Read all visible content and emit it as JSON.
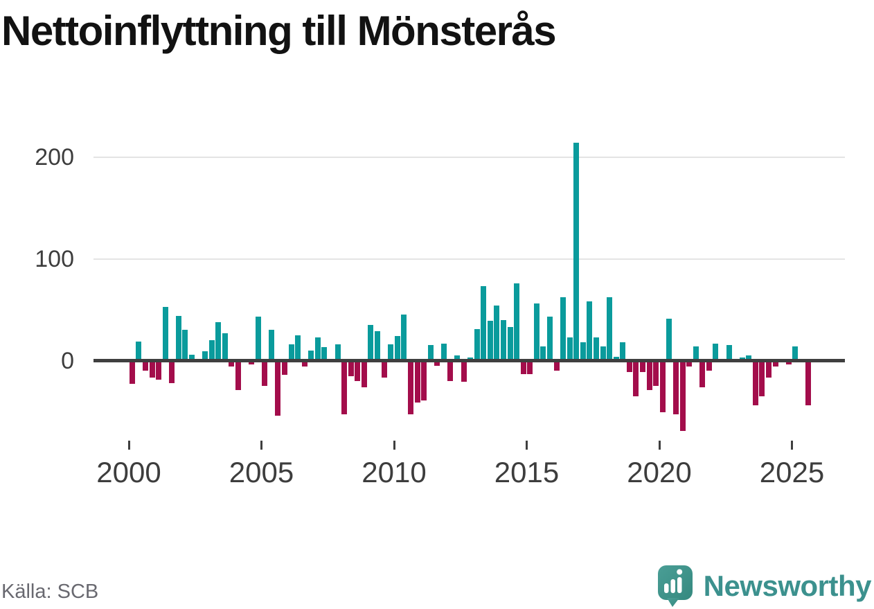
{
  "title": "Nettoinflyttning till Mönsterås",
  "source": "Källa: SCB",
  "brand": "Newsworthy",
  "colors": {
    "positive": "#0a9b9c",
    "negative": "#a30d4b",
    "axis_line": "#3f3f3f",
    "gridline": "#e4e4e4",
    "tick_text": "#3d3d3d",
    "title_text": "#121212",
    "source_text": "#696970",
    "brand_teal": "#3c918e"
  },
  "chart_data": {
    "type": "bar",
    "title": "Nettoinflyttning till Mönsterås",
    "xlabel": "",
    "ylabel": "",
    "frequency": "quarterly",
    "start_year": 2000,
    "start_quarter": 1,
    "xticks": [
      2000,
      2005,
      2010,
      2015,
      2020,
      2025
    ],
    "yticks": [
      0,
      100,
      200
    ],
    "ylim": [
      -80,
      240
    ],
    "grid": "horizontal",
    "legend": "none",
    "values": [
      -23,
      19,
      -10,
      -17,
      -19,
      53,
      -22,
      44,
      30,
      6,
      0,
      9,
      20,
      38,
      27,
      -6,
      -29,
      0,
      -4,
      43,
      -25,
      30,
      -54,
      -14,
      16,
      25,
      -6,
      10,
      23,
      13,
      0,
      16,
      -53,
      -15,
      -20,
      -26,
      35,
      29,
      -17,
      16,
      24,
      45,
      -53,
      -41,
      -39,
      15,
      -5,
      17,
      -20,
      5,
      -21,
      3,
      31,
      73,
      39,
      54,
      40,
      33,
      76,
      -13,
      -13,
      56,
      14,
      43,
      -10,
      62,
      23,
      214,
      18,
      58,
      23,
      14,
      62,
      4,
      18,
      -11,
      -35,
      -11,
      -29,
      -25,
      -51,
      41,
      -53,
      -69,
      -6,
      14,
      -26,
      -10,
      17,
      2,
      15,
      0,
      3,
      5,
      -44,
      -35,
      -17,
      -6,
      2,
      -4,
      14,
      0,
      -44
    ]
  }
}
